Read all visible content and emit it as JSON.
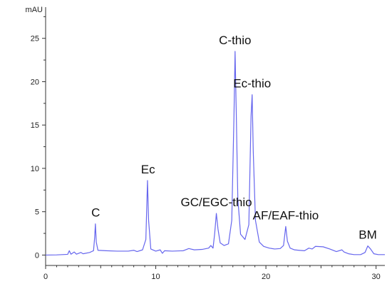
{
  "chart_data": {
    "type": "line",
    "title": "",
    "xlabel": "",
    "ylabel": "",
    "y_unit": "mAU",
    "xlim": [
      0,
      30.8
    ],
    "ylim": [
      -1.2,
      28.6
    ],
    "x_ticks": [
      0,
      10,
      20,
      30
    ],
    "y_ticks": [
      0,
      5,
      10,
      15,
      20,
      25
    ],
    "grid": false,
    "line_color": "#6666ee",
    "series": [
      {
        "points": [
          [
            0.0,
            0.0
          ],
          [
            1.0,
            0.02
          ],
          [
            2.0,
            0.08
          ],
          [
            2.15,
            0.5
          ],
          [
            2.3,
            0.1
          ],
          [
            2.6,
            0.35
          ],
          [
            2.8,
            0.1
          ],
          [
            3.2,
            0.3
          ],
          [
            3.4,
            0.15
          ],
          [
            4.0,
            0.3
          ],
          [
            4.35,
            0.5
          ],
          [
            4.45,
            2.0
          ],
          [
            4.52,
            3.6
          ],
          [
            4.6,
            1.5
          ],
          [
            4.75,
            0.55
          ],
          [
            5.5,
            0.5
          ],
          [
            6.5,
            0.45
          ],
          [
            7.5,
            0.45
          ],
          [
            8.0,
            0.55
          ],
          [
            8.3,
            0.4
          ],
          [
            8.8,
            0.6
          ],
          [
            9.1,
            1.8
          ],
          [
            9.25,
            8.6
          ],
          [
            9.35,
            4.0
          ],
          [
            9.55,
            0.7
          ],
          [
            10.0,
            0.45
          ],
          [
            10.4,
            0.6
          ],
          [
            10.6,
            0.2
          ],
          [
            10.8,
            0.5
          ],
          [
            11.5,
            0.45
          ],
          [
            12.5,
            0.5
          ],
          [
            13.0,
            0.75
          ],
          [
            13.5,
            0.6
          ],
          [
            14.2,
            0.65
          ],
          [
            14.8,
            0.8
          ],
          [
            15.0,
            1.1
          ],
          [
            15.2,
            0.8
          ],
          [
            15.35,
            2.5
          ],
          [
            15.5,
            4.8
          ],
          [
            15.65,
            3.0
          ],
          [
            15.85,
            1.4
          ],
          [
            16.2,
            1.1
          ],
          [
            16.6,
            1.3
          ],
          [
            16.9,
            4.0
          ],
          [
            17.1,
            16.0
          ],
          [
            17.2,
            23.5
          ],
          [
            17.3,
            17.0
          ],
          [
            17.45,
            6.5
          ],
          [
            17.7,
            2.4
          ],
          [
            18.1,
            1.8
          ],
          [
            18.45,
            3.5
          ],
          [
            18.65,
            16.0
          ],
          [
            18.75,
            18.5
          ],
          [
            18.85,
            12.0
          ],
          [
            19.05,
            4.0
          ],
          [
            19.4,
            1.5
          ],
          [
            19.8,
            1.0
          ],
          [
            20.3,
            0.8
          ],
          [
            20.8,
            0.7
          ],
          [
            21.3,
            0.75
          ],
          [
            21.6,
            1.1
          ],
          [
            21.8,
            3.3
          ],
          [
            21.95,
            1.6
          ],
          [
            22.2,
            0.8
          ],
          [
            22.6,
            0.6
          ],
          [
            23.0,
            0.55
          ],
          [
            23.5,
            0.5
          ],
          [
            23.9,
            0.8
          ],
          [
            24.2,
            0.7
          ],
          [
            24.5,
            1.0
          ],
          [
            25.2,
            0.95
          ],
          [
            25.8,
            0.7
          ],
          [
            26.4,
            0.4
          ],
          [
            26.9,
            0.6
          ],
          [
            27.1,
            0.35
          ],
          [
            27.5,
            0.15
          ],
          [
            28.0,
            0.05
          ],
          [
            28.6,
            0.05
          ],
          [
            29.0,
            0.3
          ],
          [
            29.25,
            1.05
          ],
          [
            29.5,
            0.7
          ],
          [
            29.8,
            0.15
          ],
          [
            30.2,
            0.05
          ],
          [
            30.8,
            0.05
          ]
        ]
      }
    ],
    "annotations": [
      {
        "text": "C",
        "x": 4.55,
        "y": 3.6
      },
      {
        "text": "Ec",
        "x": 9.3,
        "y": 8.6
      },
      {
        "text": "GC/EGC-thio",
        "x": 15.5,
        "y": 4.8
      },
      {
        "text": "C-thio",
        "x": 17.2,
        "y": 23.5
      },
      {
        "text": "Ec-thio",
        "x": 18.75,
        "y": 18.5
      },
      {
        "text": "AF/EAF-thio",
        "x": 21.8,
        "y": 3.3
      },
      {
        "text": "BM",
        "x": 29.25,
        "y": 1.05
      }
    ]
  }
}
